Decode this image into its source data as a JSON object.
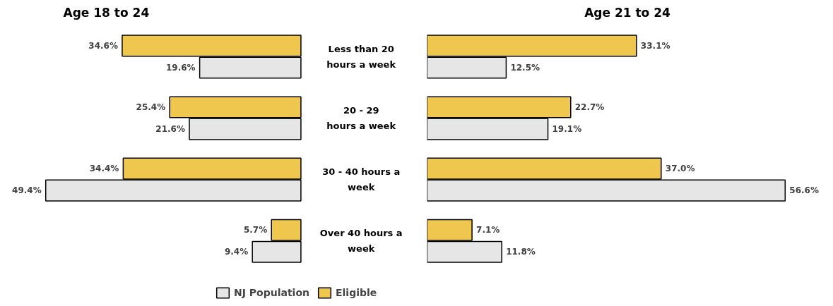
{
  "chart_data": [
    {
      "type": "bar",
      "orientation": "horizontal",
      "title": "Age 18 to 24",
      "categories": [
        "Less than 20\nhours a week",
        "20 - 29\nhours a week",
        "30 - 40 hours a\nweek",
        "Over 40 hours a\nweek"
      ],
      "series": [
        {
          "name": "NJ Population",
          "color": "#e6e6e6",
          "values": [
            19.6,
            21.6,
            49.4,
            9.4
          ],
          "value_labels": [
            "19.6%",
            "21.6%",
            "49.4%",
            "9.4%"
          ]
        },
        {
          "name": "Eligible",
          "color": "#efc74f",
          "values": [
            34.6,
            25.4,
            34.4,
            5.7
          ],
          "value_labels": [
            "34.6%",
            "25.4%",
            "34.4%",
            "5.7%"
          ]
        }
      ],
      "grid": false,
      "legend": "bottom",
      "tick_labels": "y"
    },
    {
      "type": "bar",
      "orientation": "horizontal",
      "title": "Age 21 to 24",
      "categories": [
        null,
        null,
        null,
        null
      ],
      "series": [
        {
          "color": "#e6e6e6",
          "values": [
            12.5,
            19.1,
            56.6,
            11.8
          ],
          "value_labels": [
            "12.5%",
            "19.1%",
            "56.6%",
            "11.8%"
          ]
        },
        {
          "color": "#efc74f",
          "values": [
            33.1,
            22.7,
            37.0,
            7.1
          ],
          "value_labels": [
            "33.1%",
            "22.7%",
            "37.0%",
            "7.1%"
          ]
        }
      ],
      "grid": false,
      "tick_labels": false
    }
  ]
}
